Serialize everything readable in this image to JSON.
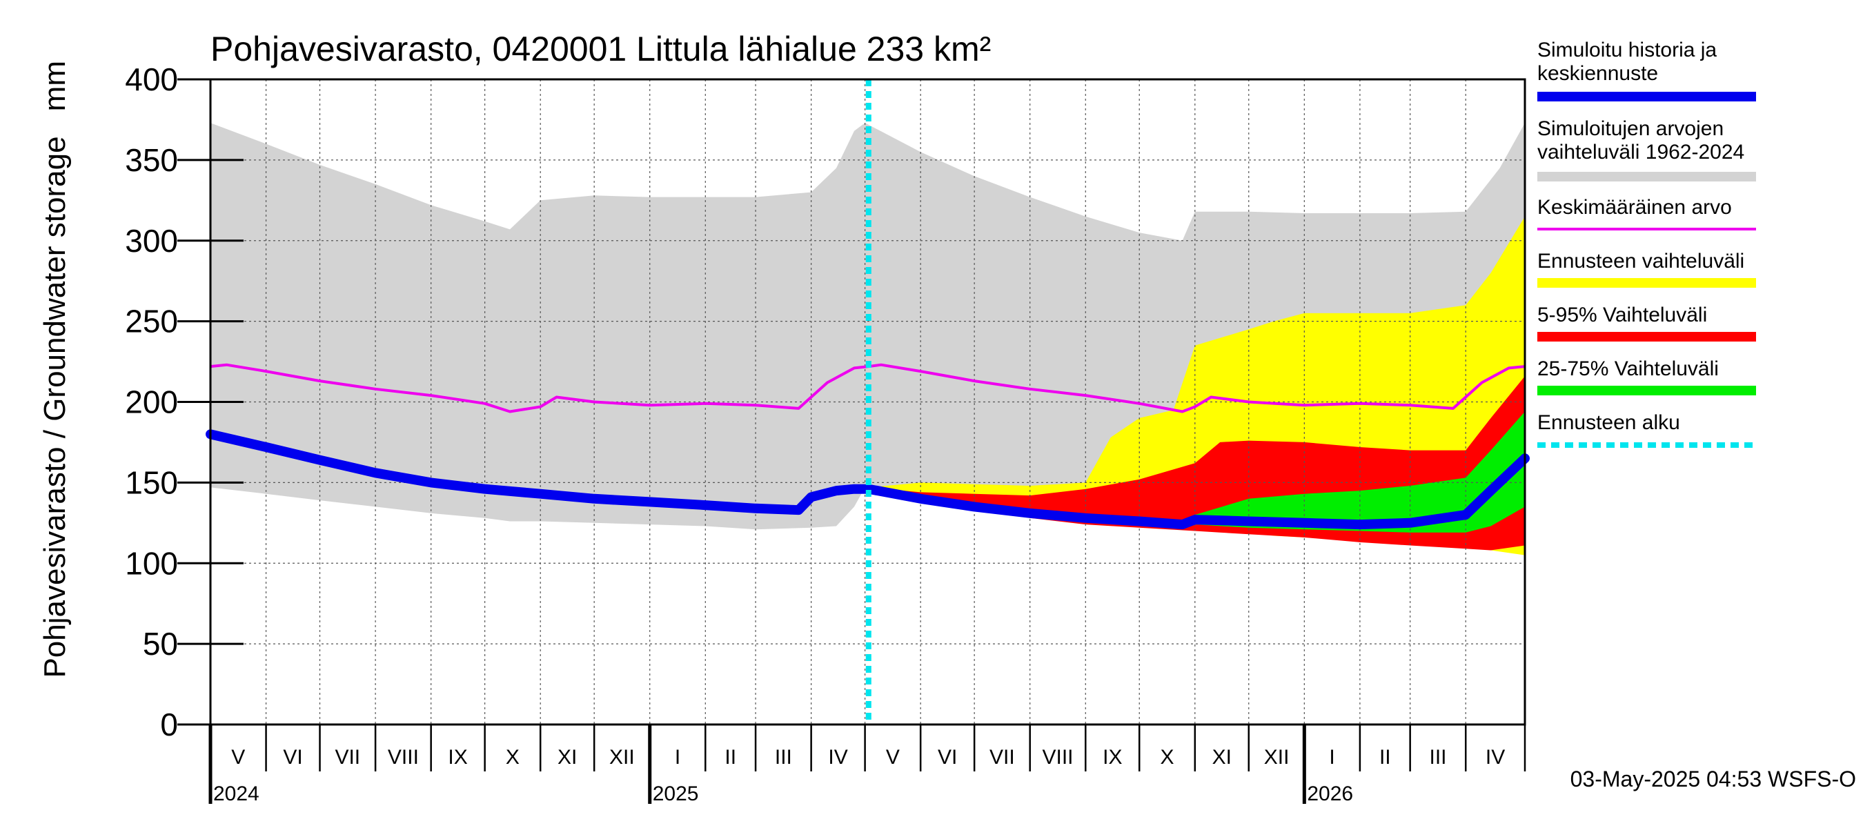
{
  "chart_data": {
    "type": "area",
    "title": "Pohjavesivarasto, 0420001 Littula lähialue 233 km²",
    "ylabel": "Pohjavesivarasto / Groundwater storage",
    "yunit": "mm",
    "ylim": [
      0,
      400
    ],
    "yticks": [
      0,
      50,
      100,
      150,
      200,
      250,
      300,
      350,
      400
    ],
    "xlim": [
      "2024-05-01",
      "2026-05-04"
    ],
    "grid": true,
    "legend_position": "right",
    "month_labels": [
      "V",
      "VI",
      "VII",
      "VIII",
      "IX",
      "X",
      "XI",
      "XII",
      "I",
      "II",
      "III",
      "IV",
      "V",
      "VI",
      "VII",
      "VIII",
      "IX",
      "X",
      "XI",
      "XII",
      "I",
      "II",
      "III",
      "IV"
    ],
    "month_starts": [
      "2024-05-01",
      "2024-06-01",
      "2024-07-01",
      "2024-08-01",
      "2024-09-01",
      "2024-10-01",
      "2024-11-01",
      "2024-12-01",
      "2025-01-01",
      "2025-02-01",
      "2025-03-01",
      "2025-04-01",
      "2025-05-01",
      "2025-06-01",
      "2025-07-01",
      "2025-08-01",
      "2025-09-01",
      "2025-10-01",
      "2025-11-01",
      "2025-12-01",
      "2026-01-01",
      "2026-02-01",
      "2026-03-01",
      "2026-04-01"
    ],
    "year_labels": [
      {
        "label": "2024",
        "date": "2024-05-01"
      },
      {
        "label": "2025",
        "date": "2025-01-01"
      },
      {
        "label": "2026",
        "date": "2026-01-01"
      }
    ],
    "forecast_start": "2025-05-03",
    "footer": "03-May-2025 04:53 WSFS-O",
    "colors": {
      "history": "#0000ee",
      "range": "#d3d3d3",
      "mean": "#ee00ee",
      "forecast_range": "#ffff00",
      "p5_95": "#ff0000",
      "p25_75": "#00ee00",
      "forecast_start": "#00e5ee"
    },
    "legend": [
      {
        "key": "history",
        "lines": [
          "Simuloitu historia ja",
          "keskiennuste"
        ]
      },
      {
        "key": "range",
        "lines": [
          "Simuloitujen arvojen",
          "vaihteluväli 1962-2024"
        ]
      },
      {
        "key": "mean",
        "lines": [
          "Keskimääräinen arvo"
        ]
      },
      {
        "key": "forecast_range",
        "lines": [
          "Ennusteen vaihteluväli"
        ]
      },
      {
        "key": "p5_95",
        "lines": [
          "5-95% Vaihteluväli"
        ]
      },
      {
        "key": "p25_75",
        "lines": [
          "25-75% Vaihteluväli"
        ]
      },
      {
        "key": "forecast_start",
        "lines": [
          "Ennusteen alku"
        ]
      }
    ],
    "series": [
      {
        "key": "range",
        "x": [
          "2024-05-01",
          "2024-06-01",
          "2024-07-01",
          "2024-08-01",
          "2024-09-01",
          "2024-10-01",
          "2024-10-15",
          "2024-11-01",
          "2024-12-01",
          "2025-01-01",
          "2025-02-01",
          "2025-03-01",
          "2025-04-01",
          "2025-04-15",
          "2025-04-25",
          "2025-05-01",
          "2025-06-01",
          "2025-07-01",
          "2025-08-01",
          "2025-09-01",
          "2025-10-01",
          "2025-10-25",
          "2025-11-01",
          "2025-12-01",
          "2026-01-01",
          "2026-02-01",
          "2026-03-01",
          "2026-04-01",
          "2026-04-20",
          "2026-05-04"
        ],
        "upper": [
          373,
          360,
          347,
          335,
          322,
          312,
          307,
          325,
          328,
          327,
          327,
          327,
          330,
          345,
          368,
          373,
          355,
          340,
          327,
          315,
          305,
          300,
          318,
          318,
          317,
          317,
          317,
          318,
          345,
          373
        ],
        "lower": [
          147,
          143,
          139,
          135,
          131,
          128,
          126,
          126,
          125,
          124,
          123,
          121,
          122,
          123,
          135,
          147,
          143,
          139,
          135,
          131,
          128,
          126,
          126,
          125,
          124,
          123,
          121,
          122,
          123,
          147
        ]
      },
      {
        "key": "forecast_range",
        "x": [
          "2025-05-03",
          "2025-06-01",
          "2025-07-01",
          "2025-08-01",
          "2025-09-01",
          "2025-09-15",
          "2025-10-01",
          "2025-10-20",
          "2025-11-01",
          "2025-12-01",
          "2025-12-15",
          "2026-01-01",
          "2026-02-01",
          "2026-03-01",
          "2026-04-01",
          "2026-04-15",
          "2026-05-04"
        ],
        "upper": [
          147,
          150,
          149,
          148,
          150,
          178,
          190,
          195,
          235,
          245,
          250,
          255,
          255,
          255,
          260,
          280,
          315
        ],
        "lower": [
          147,
          140,
          134,
          129,
          126,
          125,
          124,
          123,
          121,
          119,
          117,
          116,
          114,
          112,
          110,
          108,
          105
        ]
      },
      {
        "key": "p5_95",
        "x": [
          "2025-05-03",
          "2025-06-01",
          "2025-07-01",
          "2025-08-01",
          "2025-09-01",
          "2025-10-01",
          "2025-11-01",
          "2025-11-15",
          "2025-12-01",
          "2026-01-01",
          "2026-02-01",
          "2026-03-01",
          "2026-04-01",
          "2026-04-15",
          "2026-05-04"
        ],
        "upper": [
          147,
          144,
          143,
          142,
          146,
          152,
          162,
          175,
          176,
          175,
          172,
          170,
          170,
          190,
          216
        ],
        "lower": [
          147,
          139,
          133,
          128,
          124,
          122,
          120,
          119,
          118,
          116,
          113,
          111,
          109,
          108,
          111
        ]
      },
      {
        "key": "p25_75",
        "x": [
          "2025-10-20",
          "2025-11-01",
          "2025-12-01",
          "2026-01-01",
          "2026-02-01",
          "2026-03-01",
          "2026-04-01",
          "2026-04-15",
          "2026-05-04"
        ],
        "upper": [
          125,
          130,
          140,
          143,
          145,
          148,
          153,
          170,
          194
        ],
        "lower": [
          125,
          124,
          122,
          121,
          120,
          119,
          119,
          123,
          135
        ]
      },
      {
        "key": "mean",
        "x": [
          "2024-05-01",
          "2024-05-10",
          "2024-06-01",
          "2024-07-01",
          "2024-08-01",
          "2024-09-01",
          "2024-10-01",
          "2024-10-15",
          "2024-11-01",
          "2024-11-10",
          "2024-12-01",
          "2025-01-01",
          "2025-02-01",
          "2025-03-01",
          "2025-03-25",
          "2025-04-10",
          "2025-04-25",
          "2025-05-03",
          "2025-05-10",
          "2025-06-01",
          "2025-07-01",
          "2025-08-01",
          "2025-09-01",
          "2025-10-01",
          "2025-10-25",
          "2025-11-01",
          "2025-11-10",
          "2025-12-01",
          "2026-01-01",
          "2026-02-01",
          "2026-03-01",
          "2026-03-25",
          "2026-04-10",
          "2026-04-25",
          "2026-05-04"
        ],
        "y": [
          222,
          223,
          219,
          213,
          208,
          204,
          199,
          194,
          197,
          203,
          200,
          198,
          199,
          198,
          196,
          212,
          221,
          222,
          223,
          219,
          213,
          208,
          204,
          199,
          194,
          197,
          203,
          200,
          198,
          199,
          198,
          196,
          212,
          221,
          222
        ]
      },
      {
        "key": "history",
        "x": [
          "2024-05-01",
          "2024-06-01",
          "2024-07-01",
          "2024-08-01",
          "2024-09-01",
          "2024-10-01",
          "2024-11-01",
          "2024-12-01",
          "2025-01-01",
          "2025-02-01",
          "2025-03-01",
          "2025-03-25",
          "2025-04-01",
          "2025-04-15",
          "2025-04-25",
          "2025-05-03",
          "2025-06-01",
          "2025-07-01",
          "2025-08-01",
          "2025-09-01",
          "2025-10-01",
          "2025-10-25",
          "2025-11-01",
          "2025-12-01",
          "2026-01-01",
          "2026-02-01",
          "2026-03-01",
          "2026-04-01",
          "2026-04-15",
          "2026-05-04"
        ],
        "y": [
          180,
          172,
          164,
          156,
          150,
          146,
          143,
          140,
          138,
          136,
          134,
          133,
          141,
          145,
          146,
          146,
          140,
          135,
          131,
          128,
          126,
          124,
          127,
          126,
          125,
          124,
          125,
          130,
          145,
          165
        ]
      }
    ]
  }
}
